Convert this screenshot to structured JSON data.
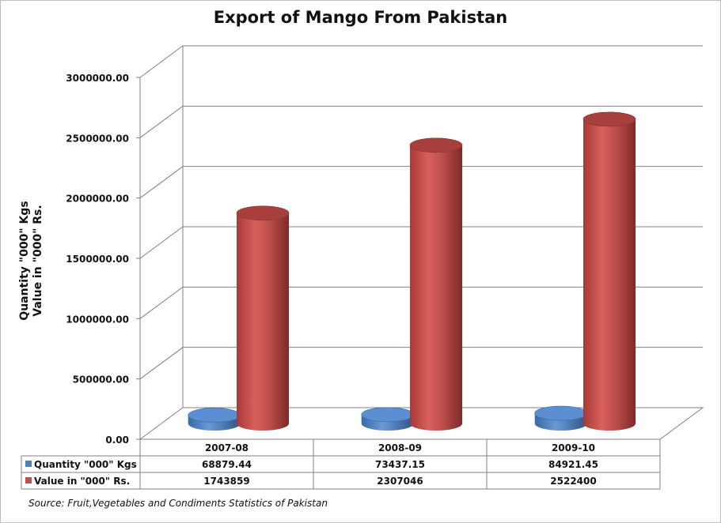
{
  "chart_data": {
    "type": "bar",
    "title": "Export of Mango From Pakistan",
    "ylabel_lines": [
      "Quantity \"000\" Kgs",
      "Value in \"000\" Rs."
    ],
    "categories": [
      "2007-08",
      "2008-09",
      "2009-10"
    ],
    "series": [
      {
        "name": "Quantity \"000\" Kgs",
        "values": [
          68879.44,
          73437.15,
          84921.45
        ],
        "value_labels": [
          "68879.44",
          "73437.15",
          "84921.45"
        ],
        "color": "#4f81bd"
      },
      {
        "name": "Value in \"000\" Rs.",
        "values": [
          1743859,
          2307046,
          2522400
        ],
        "value_labels": [
          "1743859",
          "2307046",
          "2522400"
        ],
        "color": "#c0504d"
      }
    ],
    "ylim": [
      0,
      3000000
    ],
    "yticks": [
      "0.00",
      "500000.00",
      "1000000.00",
      "1500000.00",
      "2000000.00",
      "2500000.00",
      "3000000.00"
    ],
    "grid": true,
    "legend": "data-table-below",
    "source": "Source: Fruit,Vegetables and Condiments Statistics of Pakistan"
  }
}
